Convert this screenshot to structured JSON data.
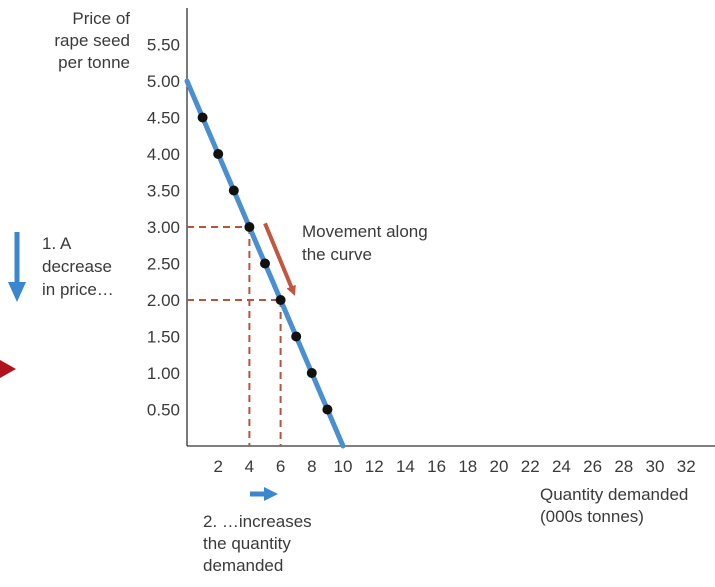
{
  "chart_data": {
    "type": "line",
    "ylabel": [
      "Price of",
      "rape seed",
      "per tonne"
    ],
    "xlabel": [
      "Quantity demanded",
      "(000s tonnes)"
    ],
    "xlim": [
      0,
      34
    ],
    "ylim": [
      0,
      5.5
    ],
    "x_ticks": [
      2,
      4,
      6,
      8,
      10,
      12,
      14,
      16,
      18,
      20,
      22,
      24,
      26,
      28,
      30,
      32
    ],
    "x_tick_labels": [
      "2",
      "4",
      "6",
      "8",
      "10",
      "12",
      "14",
      "16",
      "18",
      "20",
      "22",
      "24",
      "26",
      "28",
      "30",
      "32"
    ],
    "y_ticks": [
      0.5,
      1.0,
      1.5,
      2.0,
      2.5,
      3.0,
      3.5,
      4.0,
      4.5,
      5.0,
      5.5
    ],
    "y_tick_labels": [
      "0.50",
      "1.00",
      "1.50",
      "2.00",
      "2.50",
      "3.00",
      "3.50",
      "4.00",
      "4.50",
      "5.00",
      "5.50"
    ],
    "series": [
      {
        "line": [
          [
            0,
            5.0
          ],
          [
            10,
            0
          ]
        ],
        "points": [
          [
            1,
            4.5
          ],
          [
            2,
            4.0
          ],
          [
            3,
            3.5
          ],
          [
            4,
            3.0
          ],
          [
            5,
            2.5
          ],
          [
            6,
            2.0
          ],
          [
            7,
            1.5
          ],
          [
            8,
            1.0
          ],
          [
            9,
            0.5
          ]
        ]
      }
    ],
    "reference_points": [
      [
        4,
        3.0
      ],
      [
        6,
        2.0
      ]
    ],
    "grid": false,
    "annotations": {
      "decrease": [
        "1. A",
        "decrease",
        "in price…"
      ],
      "movement": [
        "Movement along",
        "the curve"
      ],
      "increase": [
        "2. …increases",
        "the quantity",
        "demanded"
      ]
    }
  },
  "colors": {
    "line": "#4a8fd0",
    "point": "#111111",
    "reference": "#b5553d",
    "movement_arrow": "#c0583f",
    "blue_arrow": "#3a86cf",
    "axis": "#333333",
    "side_marker": "#b0131a"
  }
}
